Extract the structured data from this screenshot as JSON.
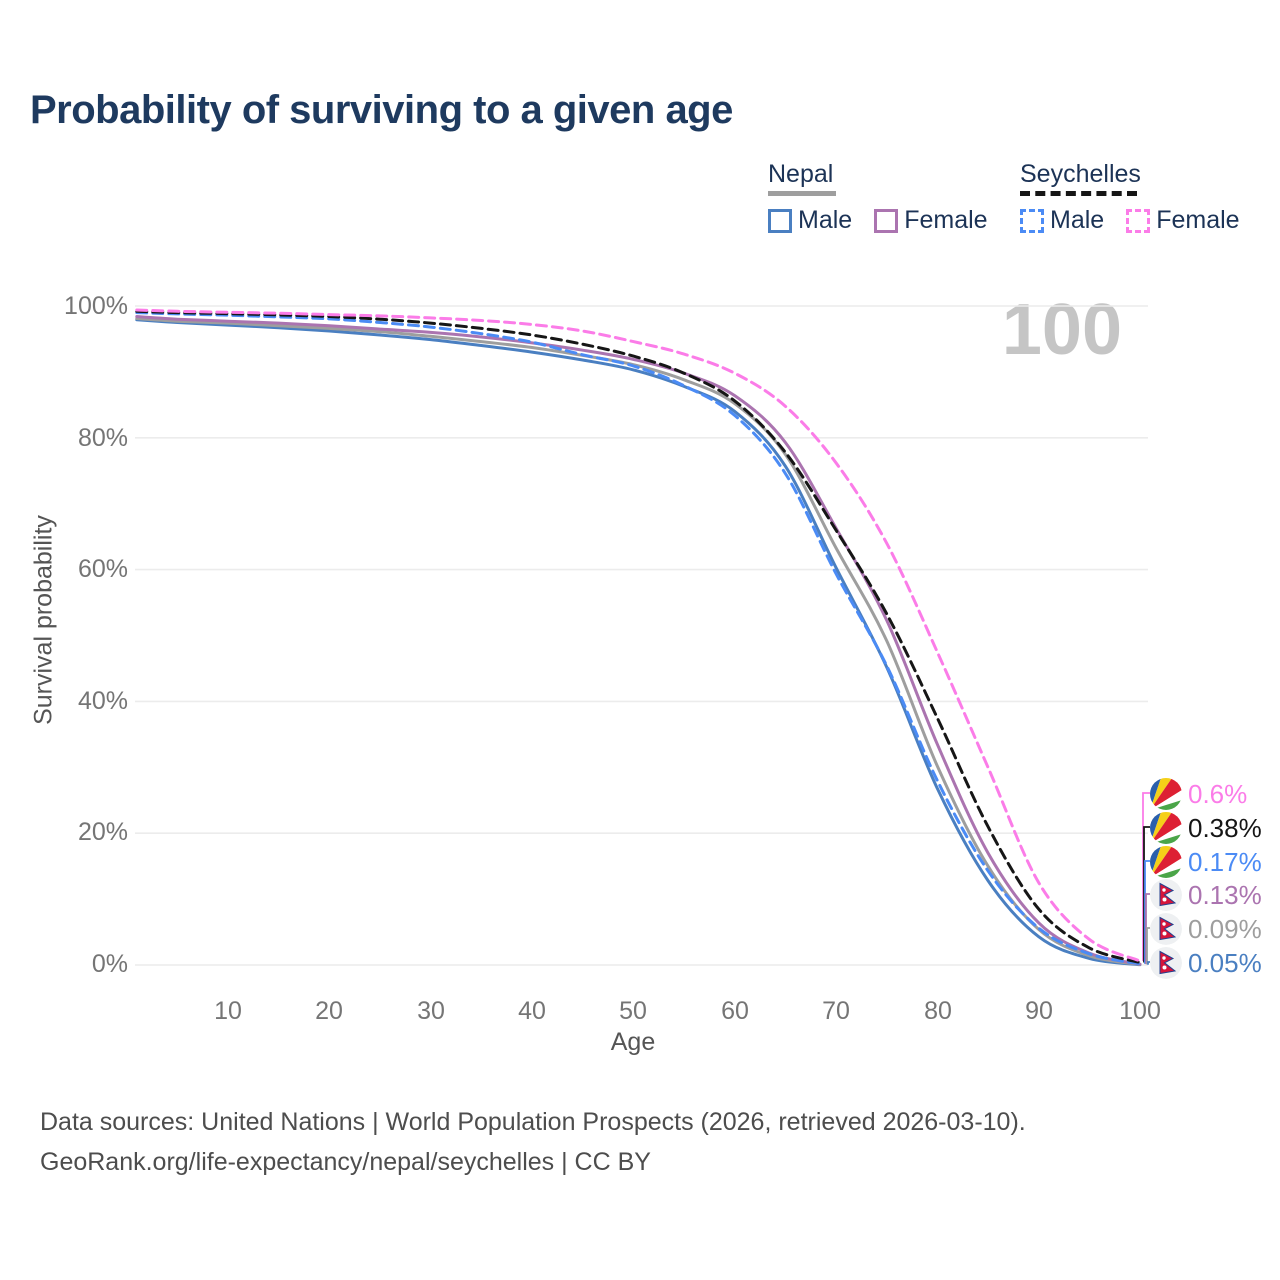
{
  "title": "Probability of surviving to a given age",
  "watermark": "100",
  "legend": {
    "groups": [
      {
        "name": "Nepal",
        "line_style": "solid",
        "underline_color": "#9e9e9e",
        "items": [
          {
            "label": "Male",
            "color": "#4a7fc1"
          },
          {
            "label": "Female",
            "color": "#ab74b0"
          }
        ]
      },
      {
        "name": "Seychelles",
        "line_style": "dashed",
        "underline_color": "#161616",
        "items": [
          {
            "label": "Male",
            "color": "#4b8bf5"
          },
          {
            "label": "Female",
            "color": "#fb7ce8"
          }
        ]
      }
    ]
  },
  "chart_data": {
    "type": "line",
    "title": "Probability of surviving to a given age",
    "xlabel": "Age",
    "ylabel": "Survival probability",
    "xlim": [
      0,
      100
    ],
    "ylim": [
      0,
      100
    ],
    "grid": "horizontal-only",
    "legend_position": "top-right",
    "x_ticks": [
      "10",
      "20",
      "30",
      "40",
      "50",
      "60",
      "70",
      "80",
      "90",
      "100"
    ],
    "y_tick_labels": [
      "100%",
      "80%",
      "60%",
      "40%",
      "20%",
      "0%"
    ],
    "y_tick_values": [
      100,
      80,
      60,
      40,
      20,
      0
    ],
    "ages": [
      1,
      5,
      10,
      15,
      20,
      25,
      30,
      35,
      40,
      45,
      50,
      55,
      60,
      65,
      70,
      75,
      80,
      85,
      90,
      95,
      100
    ],
    "series": [
      {
        "name": "Seychelles Female",
        "country": "Seychelles",
        "sex": "Female",
        "color": "#fb7ce8",
        "dashed": true,
        "end_label": "0.6%",
        "values": [
          99.4,
          99.2,
          99.05,
          98.9,
          98.7,
          98.5,
          98.2,
          97.8,
          97.2,
          96.2,
          94.6,
          92.7,
          89.8,
          84.8,
          76.2,
          64.0,
          47.5,
          30.0,
          12.5,
          3.9,
          0.6
        ]
      },
      {
        "name": "Seychelles Both sexes",
        "country": "Seychelles",
        "sex": "Both",
        "color": "#161616",
        "dashed": true,
        "end_label": "0.38%",
        "values": [
          99.2,
          99.0,
          98.85,
          98.65,
          98.4,
          98.0,
          97.4,
          96.6,
          95.6,
          94.2,
          92.4,
          89.8,
          85.6,
          77.8,
          66.0,
          53.3,
          37.5,
          21.0,
          8.5,
          2.6,
          0.38
        ]
      },
      {
        "name": "Seychelles Male",
        "country": "Seychelles",
        "sex": "Male",
        "color": "#4b8bf5",
        "dashed": true,
        "end_label": "0.17%",
        "values": [
          99.0,
          98.8,
          98.6,
          98.35,
          98.05,
          97.5,
          96.8,
          95.8,
          94.5,
          92.6,
          90.9,
          87.9,
          83.4,
          74.6,
          59.4,
          45.4,
          28.0,
          14.3,
          5.6,
          1.7,
          0.17
        ]
      },
      {
        "name": "Nepal Female",
        "country": "Nepal",
        "sex": "Female",
        "color": "#ab74b0",
        "dashed": false,
        "end_label": "0.13%",
        "values": [
          98.4,
          98.0,
          97.7,
          97.4,
          97.0,
          96.5,
          96.0,
          95.3,
          94.4,
          93.3,
          91.9,
          89.8,
          86.4,
          79.3,
          66.3,
          52.3,
          33.5,
          17.0,
          6.4,
          1.8,
          0.13
        ]
      },
      {
        "name": "Nepal Both sexes",
        "country": "Nepal",
        "sex": "Both",
        "color": "#9e9e9e",
        "dashed": false,
        "end_label": "0.09%",
        "values": [
          98.1,
          97.7,
          97.4,
          97.0,
          96.6,
          96.1,
          95.4,
          94.6,
          93.7,
          92.5,
          91.1,
          88.8,
          85.2,
          77.5,
          63.3,
          49.2,
          30.2,
          15.0,
          5.4,
          1.4,
          0.09
        ]
      },
      {
        "name": "Nepal Male",
        "country": "Nepal",
        "sex": "Male",
        "color": "#4a7fc1",
        "dashed": false,
        "end_label": "0.05%",
        "values": [
          97.9,
          97.5,
          97.1,
          96.7,
          96.2,
          95.6,
          94.9,
          94.0,
          93.0,
          91.8,
          90.3,
          87.8,
          84.0,
          75.7,
          60.3,
          45.2,
          26.8,
          12.8,
          4.3,
          1.0,
          0.05
        ]
      }
    ],
    "gridline_color": "#ececec"
  },
  "footer": {
    "line1": "Data sources: United Nations | World Population Prospects (2026, retrieved 2026-03-10).",
    "line2": "GeoRank.org/life-expectancy/nepal/seychelles | CC BY"
  }
}
